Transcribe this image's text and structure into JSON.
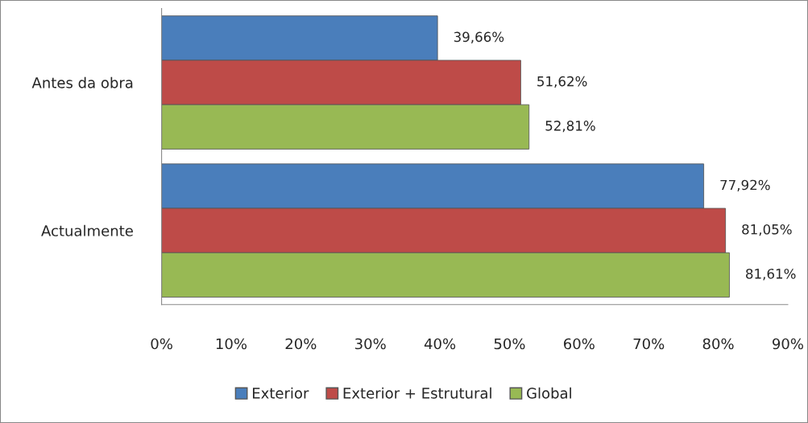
{
  "chart_data": {
    "type": "bar",
    "orientation": "horizontal",
    "categories": [
      "Antes da obra",
      "Actualmente"
    ],
    "series": [
      {
        "name": "Exterior",
        "color": "#4a7ebb",
        "values": [
          39.66,
          77.92
        ],
        "value_labels": [
          "39,66%",
          "77,92%"
        ]
      },
      {
        "name": "Exterior + Estrutural",
        "color": "#be4b48",
        "values": [
          51.62,
          81.05
        ],
        "value_labels": [
          "51,62%",
          "81,05%"
        ]
      },
      {
        "name": "Global",
        "color": "#98b954",
        "values": [
          52.81,
          81.61
        ],
        "value_labels": [
          "52,81%",
          "81,61%"
        ]
      }
    ],
    "xlim": [
      0,
      90
    ],
    "xticks": [
      {
        "value": 0,
        "label": "0%"
      },
      {
        "value": 10,
        "label": "10%"
      },
      {
        "value": 20,
        "label": "20%"
      },
      {
        "value": 30,
        "label": "30%"
      },
      {
        "value": 40,
        "label": "40%"
      },
      {
        "value": 50,
        "label": "50%"
      },
      {
        "value": 60,
        "label": "60%"
      },
      {
        "value": 70,
        "label": "70%"
      },
      {
        "value": 80,
        "label": "80%"
      },
      {
        "value": 90,
        "label": "90%"
      }
    ],
    "grid": false,
    "legend": "bottom"
  }
}
